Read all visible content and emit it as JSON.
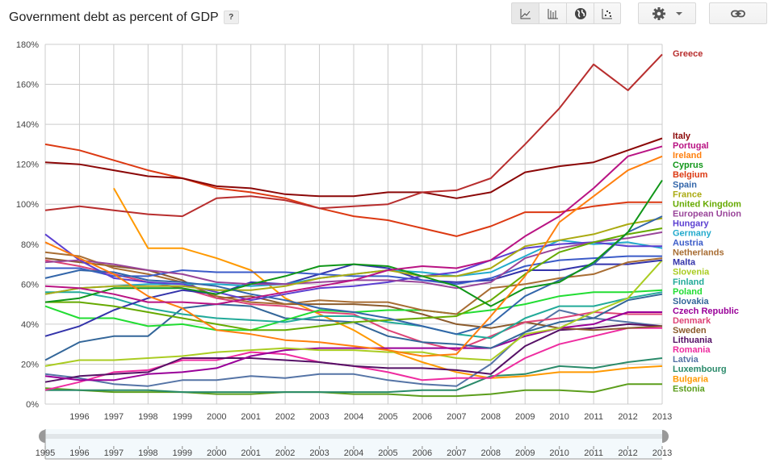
{
  "header": {
    "title": "Government debt as percent of GDP",
    "help_label": "?"
  },
  "toolbar": {
    "views": [
      {
        "name": "line-chart",
        "icon": "line-chart-icon",
        "active": true
      },
      {
        "name": "bar-chart",
        "icon": "bar-chart-icon",
        "active": false
      },
      {
        "name": "map",
        "icon": "globe-icon",
        "active": false
      },
      {
        "name": "scatter",
        "icon": "scatter-icon",
        "active": false
      }
    ],
    "settings_icon": "gear-icon",
    "link_icon": "link-icon"
  },
  "range_slider": {
    "start": "1995",
    "end": "2013",
    "ticks": [
      "1995",
      "1996",
      "1997",
      "1998",
      "1999",
      "2000",
      "2001",
      "2002",
      "2003",
      "2004",
      "2005",
      "2006",
      "2007",
      "2008",
      "2009",
      "2010",
      "2011",
      "2012",
      "2013"
    ]
  },
  "chart_data": {
    "type": "line",
    "title": "Government debt as percent of GDP",
    "xlabel": "",
    "ylabel": "",
    "x": [
      1995,
      1996,
      1997,
      1998,
      1999,
      2000,
      2001,
      2002,
      2003,
      2004,
      2005,
      2006,
      2007,
      2008,
      2009,
      2010,
      2011,
      2012,
      2013
    ],
    "x_tick_labels": [
      "1996",
      "1997",
      "1998",
      "1999",
      "2000",
      "2001",
      "2002",
      "2003",
      "2004",
      "2005",
      "2006",
      "2007",
      "2008",
      "2009",
      "2010",
      "2011",
      "2012",
      "2013"
    ],
    "y_tick_labels": [
      "0%",
      "20%",
      "40%",
      "60%",
      "80%",
      "100%",
      "120%",
      "140%",
      "160%",
      "180%"
    ],
    "ylim": [
      0,
      180
    ],
    "grid": true,
    "legend": "right",
    "series": [
      {
        "name": "Greece",
        "color": "#b82e2e",
        "values": [
          97,
          99,
          97,
          95,
          94,
          103,
          104,
          102,
          98,
          99,
          100,
          106,
          107,
          113,
          130,
          148,
          170,
          157,
          175
        ]
      },
      {
        "name": "Italy",
        "color": "#8b0707",
        "values": [
          121,
          120,
          117,
          114,
          113,
          109,
          108,
          105,
          104,
          104,
          106,
          106,
          103,
          106,
          116,
          119,
          121,
          127,
          133
        ]
      },
      {
        "name": "Portugal",
        "color": "#b91383",
        "values": [
          59,
          58,
          55,
          51,
          51,
          50,
          53,
          56,
          59,
          62,
          67,
          69,
          68,
          72,
          84,
          94,
          108,
          124,
          129
        ]
      },
      {
        "name": "Ireland",
        "color": "#ff7f0e",
        "values": [
          81,
          73,
          65,
          54,
          48,
          37,
          35,
          32,
          31,
          29,
          27,
          24,
          25,
          44,
          64,
          91,
          104,
          117,
          124
        ]
      },
      {
        "name": "Cyprus",
        "color": "#109618",
        "values": [
          51,
          53,
          58,
          58,
          58,
          55,
          60,
          64,
          69,
          70,
          69,
          64,
          59,
          49,
          58,
          61,
          71,
          86,
          112
        ]
      },
      {
        "name": "Belgium",
        "color": "#dc3912",
        "values": [
          130,
          127,
          122,
          117,
          113,
          108,
          106,
          103,
          98,
          94,
          92,
          88,
          84,
          89,
          96,
          96,
          99,
          101,
          101
        ]
      },
      {
        "name": "Spain",
        "color": "#3366aa",
        "values": [
          63,
          67,
          66,
          62,
          61,
          59,
          55,
          52,
          48,
          46,
          43,
          39,
          35,
          40,
          54,
          62,
          70,
          86,
          94
        ]
      },
      {
        "name": "France",
        "color": "#aaaa11",
        "values": [
          55,
          58,
          59,
          59,
          59,
          57,
          57,
          59,
          63,
          65,
          67,
          64,
          64,
          68,
          79,
          82,
          85,
          90,
          93
        ]
      },
      {
        "name": "United Kingdom",
        "color": "#66aa00",
        "values": [
          51,
          51,
          49,
          46,
          43,
          40,
          37,
          37,
          39,
          41,
          42,
          43,
          44,
          52,
          65,
          76,
          81,
          85,
          88
        ]
      },
      {
        "name": "European Union",
        "color": "#994499",
        "values": [
          71,
          72,
          70,
          67,
          65,
          61,
          60,
          60,
          61,
          62,
          62,
          61,
          58,
          61,
          73,
          78,
          81,
          83,
          86
        ]
      },
      {
        "name": "Hungary",
        "color": "#5b3fd1",
        "values": [
          85,
          72,
          63,
          61,
          60,
          56,
          52,
          55,
          58,
          59,
          61,
          64,
          66,
          72,
          78,
          80,
          81,
          79,
          79
        ]
      },
      {
        "name": "Germany",
        "color": "#22aacc",
        "values": [
          55,
          58,
          59,
          60,
          60,
          60,
          59,
          60,
          63,
          65,
          67,
          66,
          64,
          66,
          74,
          82,
          80,
          81,
          78
        ]
      },
      {
        "name": "Austria",
        "color": "#3b5bc8",
        "values": [
          68,
          68,
          64,
          64,
          67,
          66,
          66,
          66,
          65,
          64,
          64,
          62,
          60,
          63,
          69,
          72,
          73,
          74,
          74
        ]
      },
      {
        "name": "Netherlands",
        "color": "#a86d33",
        "values": [
          76,
          74,
          68,
          65,
          61,
          54,
          51,
          50,
          52,
          51,
          51,
          47,
          45,
          58,
          60,
          63,
          65,
          71,
          73
        ]
      },
      {
        "name": "Malta",
        "color": "#3333aa",
        "values": [
          34,
          39,
          47,
          53,
          57,
          55,
          61,
          60,
          65,
          70,
          68,
          62,
          61,
          62,
          67,
          67,
          70,
          70,
          72
        ]
      },
      {
        "name": "Slovenia",
        "color": "#aacc22",
        "values": [
          19,
          22,
          22,
          23,
          24,
          26,
          27,
          28,
          27,
          27,
          26,
          26,
          23,
          22,
          35,
          38,
          46,
          53,
          72
        ]
      },
      {
        "name": "Finland",
        "color": "#22aa99",
        "values": [
          56,
          56,
          53,
          48,
          45,
          43,
          42,
          41,
          44,
          44,
          41,
          39,
          35,
          33,
          43,
          49,
          49,
          53,
          56
        ]
      },
      {
        "name": "Poland",
        "color": "#22dd33",
        "values": [
          49,
          43,
          43,
          39,
          40,
          37,
          37,
          42,
          47,
          46,
          47,
          47,
          45,
          47,
          50,
          54,
          56,
          56,
          57
        ]
      },
      {
        "name": "Slovakia",
        "color": "#336699",
        "values": [
          22,
          31,
          34,
          34,
          48,
          50,
          49,
          43,
          42,
          41,
          34,
          31,
          30,
          28,
          36,
          41,
          43,
          52,
          55
        ]
      },
      {
        "name": "Czech Republic",
        "color": "#990099",
        "values": [
          14,
          12,
          12,
          15,
          16,
          18,
          24,
          27,
          28,
          28,
          28,
          28,
          28,
          28,
          34,
          38,
          40,
          46,
          46
        ]
      },
      {
        "name": "Denmark",
        "color": "#dd4477",
        "values": [
          72,
          69,
          65,
          61,
          58,
          53,
          50,
          49,
          46,
          45,
          37,
          31,
          27,
          34,
          41,
          43,
          46,
          45,
          45
        ]
      },
      {
        "name": "Sweden",
        "color": "#8b5a2b",
        "values": [
          73,
          71,
          69,
          67,
          62,
          53,
          54,
          50,
          50,
          50,
          49,
          45,
          40,
          38,
          41,
          38,
          37,
          38,
          39
        ]
      },
      {
        "name": "Lithuania",
        "color": "#551166",
        "values": [
          11,
          14,
          15,
          16,
          23,
          23,
          23,
          22,
          21,
          19,
          18,
          18,
          17,
          15,
          29,
          37,
          38,
          40,
          39
        ]
      },
      {
        "name": "Romania",
        "color": "#ee2ca0",
        "values": [
          7,
          11,
          16,
          17,
          22,
          22,
          26,
          25,
          21,
          19,
          16,
          12,
          13,
          13,
          23,
          30,
          34,
          38,
          38
        ]
      },
      {
        "name": "Latvia",
        "color": "#5574a6",
        "values": [
          15,
          13,
          10,
          9,
          12,
          12,
          14,
          13,
          15,
          15,
          12,
          10,
          9,
          20,
          36,
          47,
          43,
          41,
          39
        ]
      },
      {
        "name": "Luxembourg",
        "color": "#2a8a6a",
        "values": [
          7,
          7,
          7,
          7,
          6,
          6,
          6,
          6,
          6,
          6,
          6,
          7,
          7,
          14,
          15,
          19,
          18,
          21,
          23
        ]
      },
      {
        "name": "Bulgaria",
        "color": "#ff9900",
        "values": [
          null,
          null,
          108,
          78,
          78,
          73,
          67,
          53,
          45,
          37,
          27,
          21,
          16,
          13,
          14,
          16,
          16,
          18,
          19
        ]
      },
      {
        "name": "Estonia",
        "color": "#5c9e1c",
        "values": [
          8,
          7,
          6,
          6,
          6,
          5,
          5,
          6,
          6,
          5,
          5,
          4,
          4,
          5,
          7,
          7,
          6,
          10,
          10
        ]
      }
    ],
    "legend_labels": [
      "Greece",
      "Italy",
      "Portugal",
      "Ireland",
      "Cyprus",
      "Belgium",
      "Spain",
      "France",
      "United Kingdom",
      "European Union",
      "Hungary",
      "Germany",
      "Austria",
      "Netherlands",
      "Malta",
      "Slovenia",
      "Finland",
      "Poland",
      "Slovakia",
      "Czech Republic",
      "Denmark",
      "Sweden",
      "Lithuania",
      "Romania",
      "Latvia",
      "Luxembourg",
      "Bulgaria",
      "Estonia"
    ]
  }
}
